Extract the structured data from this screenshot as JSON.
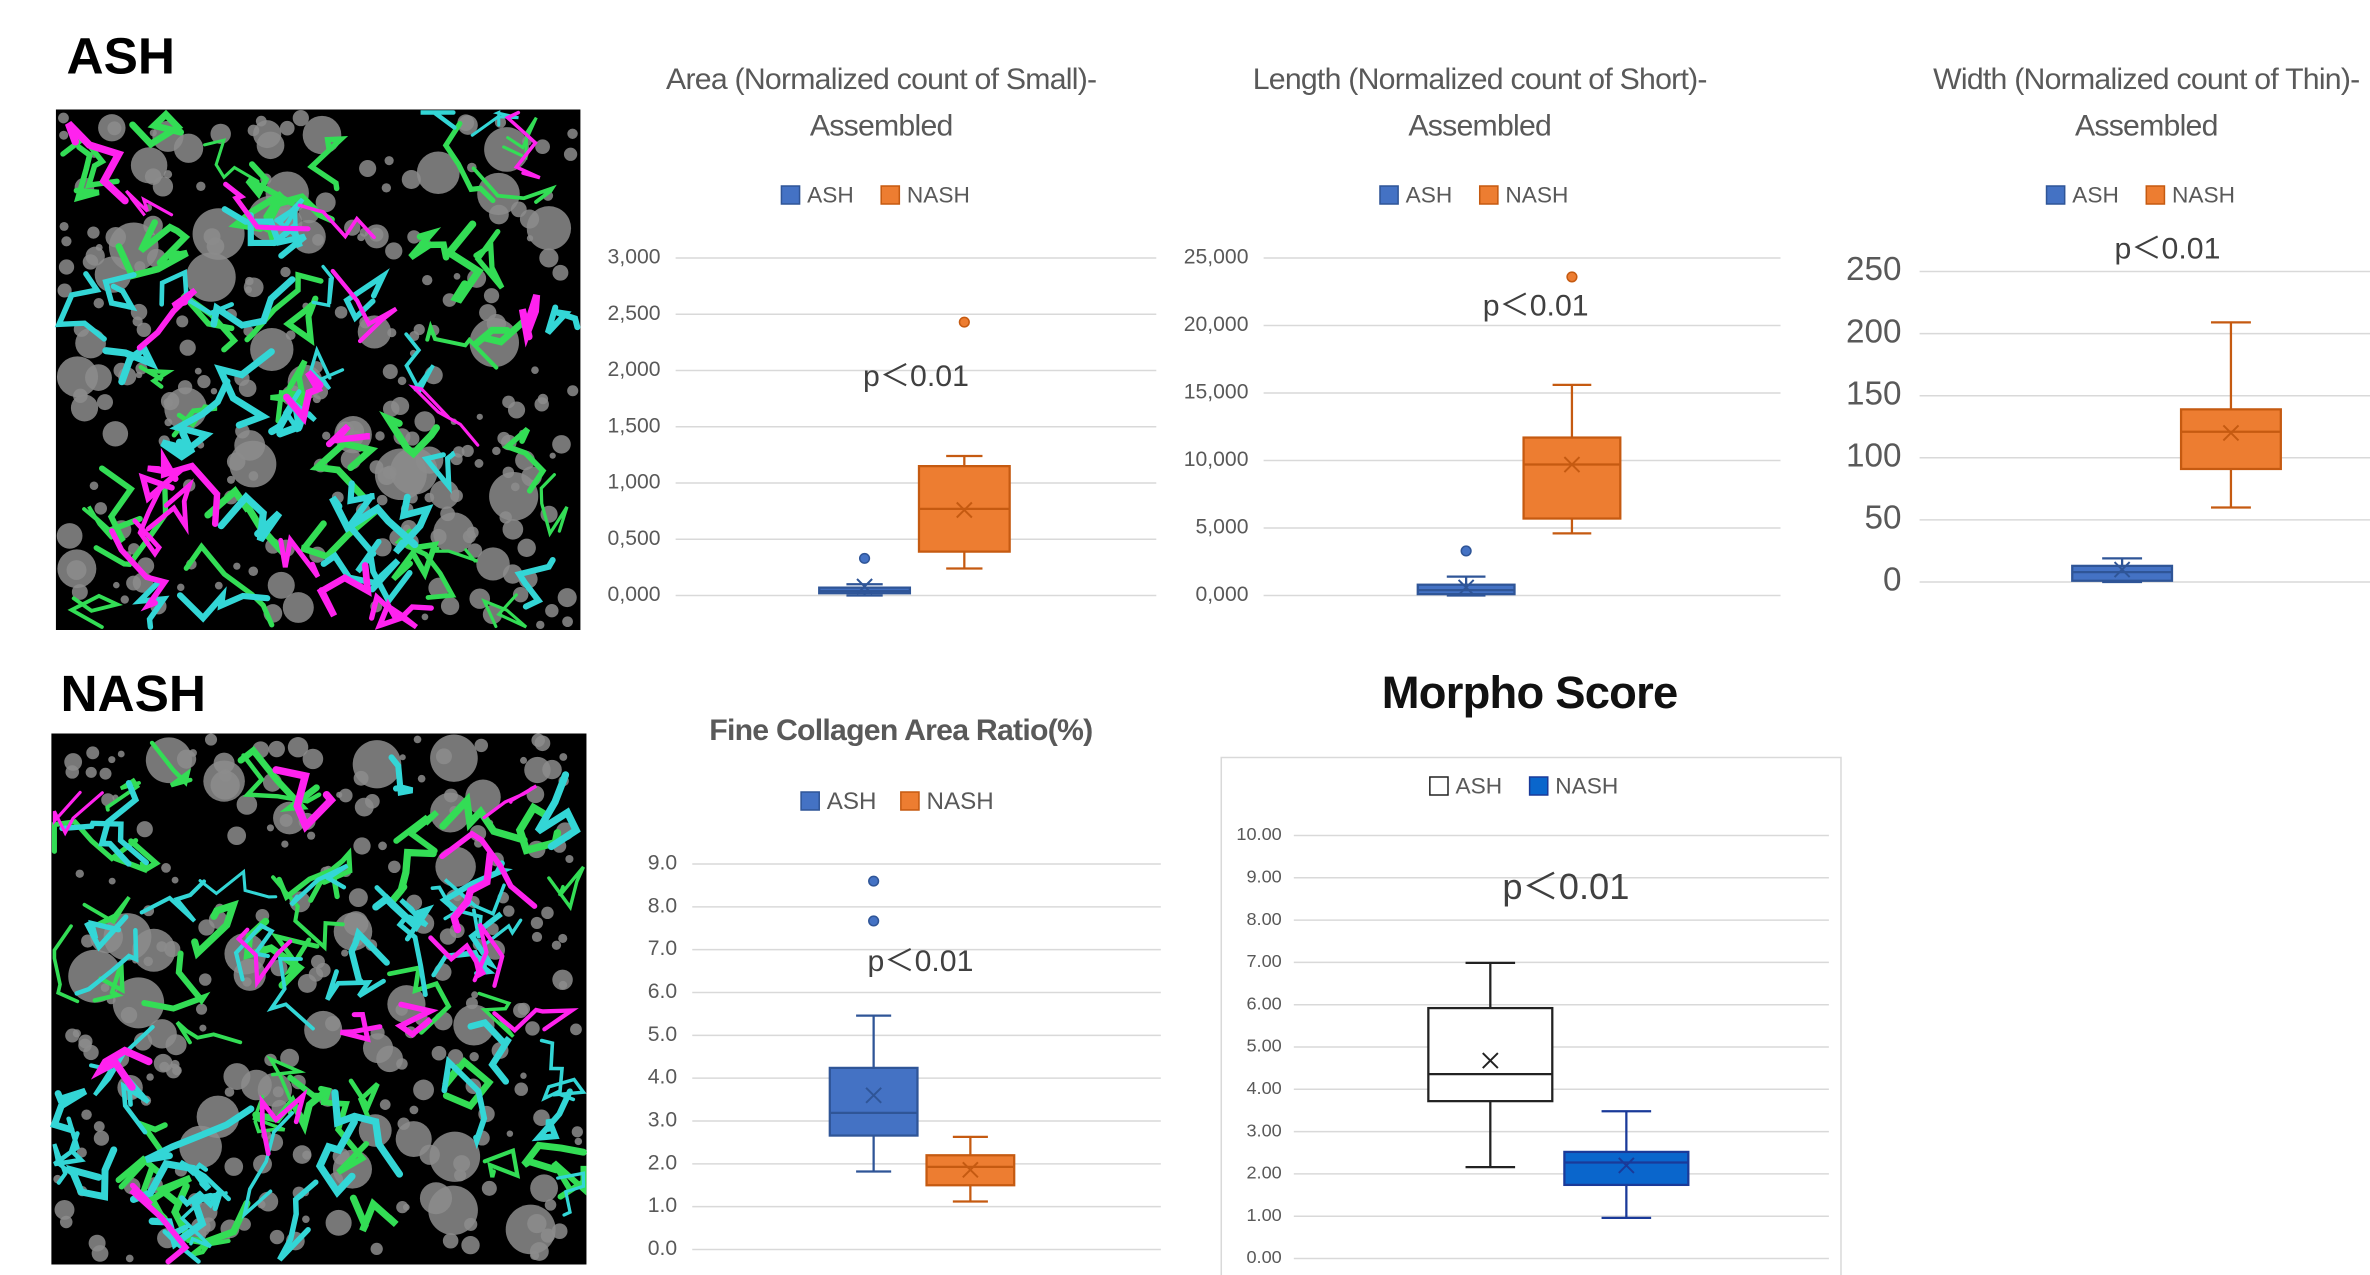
{
  "panel_labels": [
    "ASH",
    "NASH"
  ],
  "chart_data": [
    {
      "type": "box",
      "title": [
        "Area (Normalized count of Small)-",
        "Assembled"
      ],
      "annotation": "p＜0.01",
      "ylim": [
        0,
        3
      ],
      "grid": true,
      "yticks": [
        {
          "value": 0,
          "label": "0,000"
        },
        {
          "value": 0.5,
          "label": "0,500"
        },
        {
          "value": 1,
          "label": "1,000"
        },
        {
          "value": 1.5,
          "label": "1,500"
        },
        {
          "value": 2,
          "label": "2,000"
        },
        {
          "value": 2.5,
          "label": "2,500"
        },
        {
          "value": 3,
          "label": "3,000"
        }
      ],
      "series": [
        {
          "name": "ASH",
          "color": "#4472c4",
          "edge": "#2f5597",
          "min": 0,
          "q1": 0.02,
          "median": 0.04,
          "q3": 0.07,
          "max": 0.1,
          "mean": 0.08,
          "outliers": [
            0.33
          ]
        },
        {
          "name": "NASH",
          "color": "#ed7d31",
          "edge": "#c55a11",
          "min": 0.24,
          "q1": 0.39,
          "median": 0.77,
          "q3": 1.15,
          "max": 1.24,
          "mean": 0.76,
          "outliers": [
            2.43
          ]
        }
      ]
    },
    {
      "type": "box",
      "title": [
        "Length (Normalized count of Short)-",
        "Assembled"
      ],
      "annotation": "p＜0.01",
      "ylim": [
        0,
        25
      ],
      "grid": true,
      "yticks": [
        {
          "value": 0,
          "label": "0,000"
        },
        {
          "value": 5,
          "label": "5,000"
        },
        {
          "value": 10,
          "label": "10,000"
        },
        {
          "value": 15,
          "label": "15,000"
        },
        {
          "value": 20,
          "label": "20,000"
        },
        {
          "value": 25,
          "label": "25,000"
        }
      ],
      "series": [
        {
          "name": "ASH",
          "color": "#4472c4",
          "edge": "#2f5597",
          "min": 0,
          "q1": 0.1,
          "median": 0.4,
          "q3": 0.8,
          "max": 1.4,
          "mean": 0.6,
          "outliers": [
            3.3
          ]
        },
        {
          "name": "NASH",
          "color": "#ed7d31",
          "edge": "#c55a11",
          "min": 4.6,
          "q1": 5.7,
          "median": 9.7,
          "q3": 11.7,
          "max": 15.6,
          "mean": 9.7,
          "outliers": [
            23.6
          ]
        }
      ]
    },
    {
      "type": "box",
      "title": [
        "Width (Normalized count of Thin)-",
        "Assembled"
      ],
      "annotation": "p＜0.01",
      "ylim": [
        0,
        250
      ],
      "grid": true,
      "yticks": [
        0,
        50,
        100,
        150,
        200,
        250
      ],
      "series": [
        {
          "name": "ASH",
          "color": "#4472c4",
          "edge": "#2f5597",
          "min": 0,
          "q1": 1,
          "median": 8,
          "q3": 13,
          "max": 19,
          "mean": 10,
          "outliers": []
        },
        {
          "name": "NASH",
          "color": "#ed7d31",
          "edge": "#c55a11",
          "min": 60,
          "q1": 91,
          "median": 121,
          "q3": 139,
          "max": 209,
          "mean": 120,
          "outliers": []
        }
      ]
    },
    {
      "type": "box",
      "title": [
        "Fine Collagen Area Ratio(%)"
      ],
      "annotation": "p＜0.01",
      "ylim": [
        0,
        9
      ],
      "grid": true,
      "yticks": [
        {
          "value": 0,
          "label": "0.0"
        },
        {
          "value": 1,
          "label": "1.0"
        },
        {
          "value": 2,
          "label": "2.0"
        },
        {
          "value": 3,
          "label": "3.0"
        },
        {
          "value": 4,
          "label": "4.0"
        },
        {
          "value": 5,
          "label": "5.0"
        },
        {
          "value": 6,
          "label": "6.0"
        },
        {
          "value": 7,
          "label": "7.0"
        },
        {
          "value": 8,
          "label": "8.0"
        },
        {
          "value": 9,
          "label": "9.0"
        }
      ],
      "series": [
        {
          "name": "ASH",
          "color": "#4472c4",
          "edge": "#2f5597",
          "min": 1.82,
          "q1": 2.66,
          "median": 3.19,
          "q3": 4.24,
          "max": 5.46,
          "mean": 3.6,
          "outliers": [
            8.6,
            7.67
          ]
        },
        {
          "name": "NASH",
          "color": "#ed7d31",
          "edge": "#c55a11",
          "min": 1.12,
          "q1": 1.5,
          "median": 1.93,
          "q3": 2.2,
          "max": 2.63,
          "mean": 1.86,
          "outliers": []
        }
      ]
    },
    {
      "type": "box",
      "title": [
        "Morpho Score"
      ],
      "annotation": "p＜0.01",
      "ylim": [
        0,
        10
      ],
      "grid": true,
      "yticks": [
        {
          "value": 0,
          "label": "0.00"
        },
        {
          "value": 1,
          "label": "1.00"
        },
        {
          "value": 2,
          "label": "2.00"
        },
        {
          "value": 3,
          "label": "3.00"
        },
        {
          "value": 4,
          "label": "4.00"
        },
        {
          "value": 5,
          "label": "5.00"
        },
        {
          "value": 6,
          "label": "6.00"
        },
        {
          "value": 7,
          "label": "7.00"
        },
        {
          "value": 8,
          "label": "8.00"
        },
        {
          "value": 9,
          "label": "9.00"
        },
        {
          "value": 10,
          "label": "10.00"
        }
      ],
      "series": [
        {
          "name": "ASH",
          "color": "#ffffff",
          "edge": "#222222",
          "min": 2.16,
          "q1": 3.72,
          "median": 4.36,
          "q3": 5.92,
          "max": 6.99,
          "mean": 4.68,
          "outliers": []
        },
        {
          "name": "NASH",
          "color": "#0a66cc",
          "edge": "#1a3a99",
          "min": 0.96,
          "q1": 1.74,
          "median": 2.27,
          "q3": 2.52,
          "max": 3.48,
          "mean": 2.2,
          "outliers": []
        }
      ]
    }
  ]
}
